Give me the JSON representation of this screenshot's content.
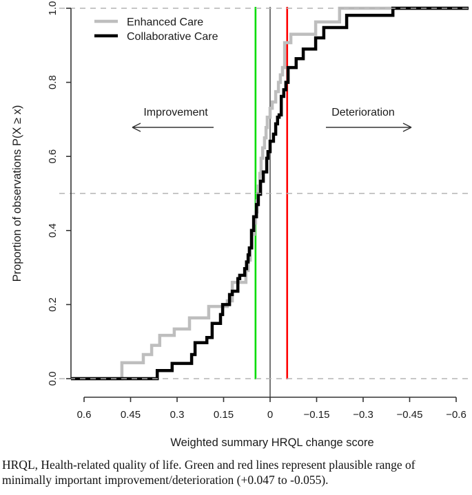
{
  "figure": {
    "legend": {
      "items": [
        {
          "label": "Enhanced Care",
          "color": "#BEBEBE"
        },
        {
          "label": "Collaborative Care",
          "color": "#000000"
        }
      ]
    },
    "annotations": {
      "improvement": "Improvement",
      "deterioration": "Deterioration"
    },
    "caption": {
      "line1": "HRQL, Health-related quality of life. Green and red lines represent plausible range of",
      "line2": "minimally important improvement/deterioration (+0.047 to -0.055)."
    }
  },
  "chart_data": {
    "type": "line",
    "variant": "step-ecdf-reverse-cumulative",
    "title": "",
    "xlabel": "Weighted summary HRQL change score",
    "ylabel": "Proportion of observations P(X ≥ x)",
    "x_axis": {
      "reversed": true,
      "range": [
        0.65,
        -0.65
      ],
      "tick_values": [
        0.6,
        0.45,
        0.3,
        0.15,
        0,
        -0.15,
        -0.3,
        -0.45,
        -0.6
      ],
      "tick_labels": [
        "0.6",
        "0.45",
        "0.3",
        "0.15",
        "0",
        "−0.15",
        "−0.3",
        "−0.45",
        "−0.6"
      ]
    },
    "y_axis": {
      "range": [
        0,
        1
      ],
      "tick_values": [
        0,
        0.2,
        0.4,
        0.6,
        0.8,
        1.0
      ],
      "tick_labels": [
        "0.0",
        "0.2",
        "0.4",
        "0.6",
        "0.8",
        "1.0"
      ]
    },
    "grid": {
      "dashed_horizontal_at": [
        0,
        0.5,
        1.0
      ],
      "color": "#b3b3b3"
    },
    "vlines": [
      {
        "name": "minimal-important-improvement-line",
        "value": 0.047,
        "color": "#00DD00",
        "width": 2.6
      },
      {
        "name": "zero-reference-line",
        "value": 0,
        "color": "#3a3a3a",
        "width": 1.4
      },
      {
        "name": "minimal-important-deterioration-line",
        "value": -0.055,
        "color": "#FF0000",
        "width": 2.6
      }
    ],
    "minimal_important_range_label": "+0.047 to -0.055",
    "legend_position": "top-left",
    "series": [
      {
        "name": "Enhanced Care",
        "color": "#BEBEBE",
        "steps": [
          [
            0.478,
            0.043
          ],
          [
            0.409,
            0.065
          ],
          [
            0.382,
            0.09
          ],
          [
            0.356,
            0.117
          ],
          [
            0.309,
            0.134
          ],
          [
            0.26,
            0.164
          ],
          [
            0.198,
            0.195
          ],
          [
            0.138,
            0.21
          ],
          [
            0.122,
            0.26
          ],
          [
            0.078,
            0.292
          ],
          [
            0.071,
            0.32
          ],
          [
            0.064,
            0.353
          ],
          [
            0.058,
            0.39
          ],
          [
            0.051,
            0.42
          ],
          [
            0.047,
            0.45
          ],
          [
            0.042,
            0.48
          ],
          [
            0.038,
            0.52
          ],
          [
            0.033,
            0.554
          ],
          [
            0.029,
            0.595
          ],
          [
            0.024,
            0.623
          ],
          [
            0.018,
            0.65
          ],
          [
            0.013,
            0.678
          ],
          [
            0.009,
            0.706
          ],
          [
            0.0,
            0.73
          ],
          [
            -0.007,
            0.747
          ],
          [
            -0.018,
            0.775
          ],
          [
            -0.027,
            0.8
          ],
          [
            -0.033,
            0.82
          ],
          [
            -0.04,
            0.84
          ],
          [
            -0.047,
            0.907
          ],
          [
            -0.067,
            0.93
          ],
          [
            -0.147,
            0.963
          ],
          [
            -0.224,
            1.0
          ]
        ]
      },
      {
        "name": "Collaborative Care",
        "color": "#000000",
        "steps": [
          [
            0.364,
            0.022
          ],
          [
            0.316,
            0.041
          ],
          [
            0.253,
            0.065
          ],
          [
            0.242,
            0.097
          ],
          [
            0.204,
            0.111
          ],
          [
            0.187,
            0.149
          ],
          [
            0.16,
            0.173
          ],
          [
            0.153,
            0.2
          ],
          [
            0.131,
            0.227
          ],
          [
            0.122,
            0.236
          ],
          [
            0.104,
            0.27
          ],
          [
            0.098,
            0.279
          ],
          [
            0.082,
            0.297
          ],
          [
            0.076,
            0.315
          ],
          [
            0.071,
            0.334
          ],
          [
            0.067,
            0.353
          ],
          [
            0.06,
            0.4
          ],
          [
            0.053,
            0.437
          ],
          [
            0.044,
            0.47
          ],
          [
            0.038,
            0.498
          ],
          [
            0.031,
            0.533
          ],
          [
            0.022,
            0.558
          ],
          [
            0.011,
            0.595
          ],
          [
            0.007,
            0.613
          ],
          [
            0.0,
            0.641
          ],
          [
            -0.011,
            0.66
          ],
          [
            -0.018,
            0.688
          ],
          [
            -0.024,
            0.706
          ],
          [
            -0.029,
            0.712
          ],
          [
            -0.036,
            0.762
          ],
          [
            -0.044,
            0.78
          ],
          [
            -0.051,
            0.8
          ],
          [
            -0.058,
            0.84
          ],
          [
            -0.084,
            0.864
          ],
          [
            -0.107,
            0.89
          ],
          [
            -0.147,
            0.92
          ],
          [
            -0.173,
            0.948
          ],
          [
            -0.247,
            0.981
          ],
          [
            -0.396,
            1.0
          ]
        ]
      }
    ]
  }
}
